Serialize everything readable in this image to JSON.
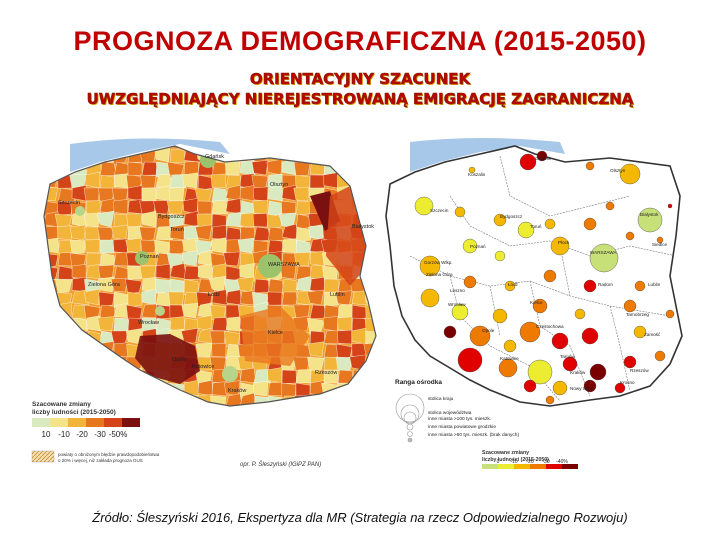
{
  "title": "PROGNOZA DEMOGRAFICZNA (2015-2050)",
  "subtitle_line1": "ORIENTACYJNY SZACUNEK",
  "subtitle_line2": "UWZGLĘDNIAJĄCY NIEREJESTROWANĄ EMIGRACJĘ ZAGRANICZNĄ",
  "left_map": {
    "cities": [
      "Gdańsk",
      "Olsztyn",
      "Szczecin",
      "Białystok",
      "Bydgoszcz",
      "Toruń",
      "Poznań",
      "WARSZAWA",
      "Zielona Góra",
      "Łódź",
      "Lublin",
      "Wrocław",
      "Kielce",
      "Opole",
      "Rzeszów",
      "Katowice",
      "Kraków"
    ],
    "legend_title": "Szacowane zmiany liczby ludności (2015-2050)",
    "legend_labels": [
      "10",
      "-10",
      "-20",
      "-30",
      "-50%"
    ],
    "legend_colors": [
      "#d9eac0",
      "#f5e38a",
      "#f2b53a",
      "#e8781f",
      "#d44418",
      "#7a1010"
    ],
    "note": "powiaty o obniżonym błędzie prawdopodobieństwa o 20% i więcej, niż zakłada prognoza GUS",
    "author": "opr. P. Śleszyński (IGiPZ PAN)"
  },
  "right_map": {
    "cities": [
      "Gdańsk",
      "Olsztyn",
      "Koszalin",
      "Szczecin",
      "Białystok",
      "Bydgoszcz",
      "Toruń",
      "Płock",
      "Siedlce",
      "Poznań",
      "WARSZAWA",
      "Gorzów Wlkp.",
      "Zielona Góra",
      "Leszno",
      "Łódź",
      "Radom",
      "Lublin",
      "Wrocław",
      "Kielce",
      "Tarnobrzeg",
      "Opole",
      "Częstochowa",
      "Zamość",
      "Katowice",
      "Tarnów",
      "Kraków",
      "Rzeszów",
      "Nowy Sącz",
      "Krosno"
    ],
    "rank_title": "Ranga ośrodka",
    "rank_items": [
      "stolica kraju",
      "stolica województwa",
      "inne miasta >100 tys. mieszk.",
      "inne miasta powiatowe grodzkie",
      "inne miasta >50 tys. mieszk. (brak danych)"
    ],
    "legend_title": "Szacowane zmiany liczby ludności (2015-2050)",
    "legend_labels": [
      "0",
      "-10",
      "-20",
      "-30",
      "-40%"
    ],
    "legend_colors": [
      "#c8e078",
      "#ecec30",
      "#f5b800",
      "#ef7a00",
      "#e00000",
      "#7a0000"
    ]
  },
  "source": "Źródło: Śleszyński 2016, Ekspertyza dla MR (Strategia na rzecz Odpowiedzialnego Rozwoju)"
}
